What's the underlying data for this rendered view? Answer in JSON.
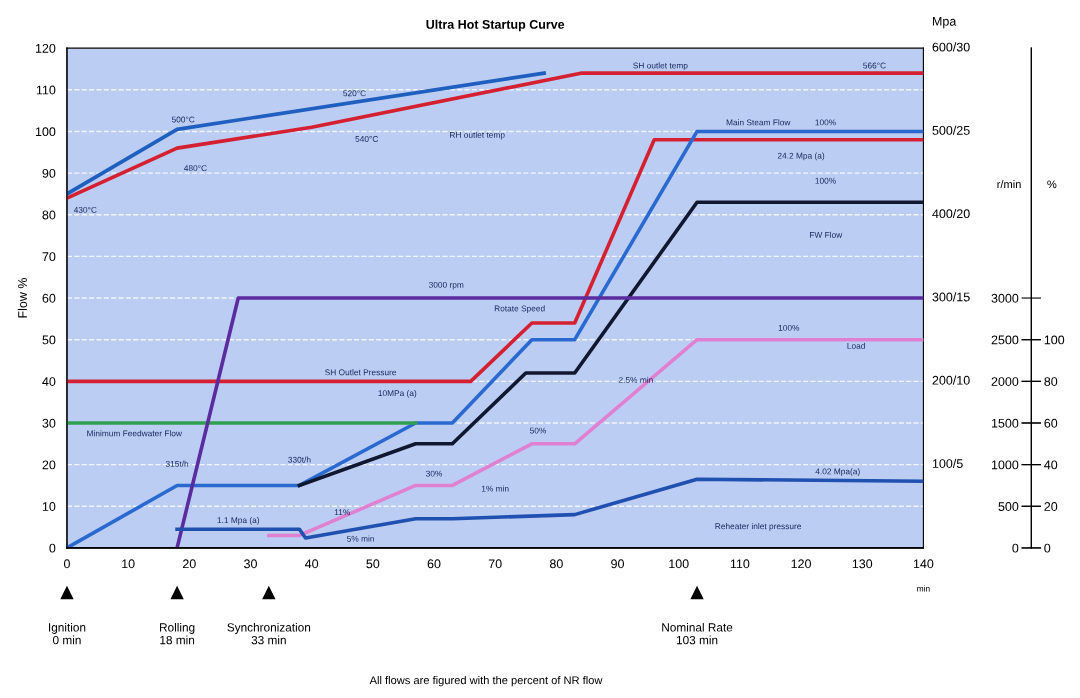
{
  "chart_data": {
    "type": "line",
    "title": "Ultra Hot Startup Curve",
    "xlabel": "min",
    "ylabel": "Flow %",
    "y2label": "%",
    "y3label": "r/min",
    "xlim": [
      0,
      140
    ],
    "xticks": [
      0,
      10,
      20,
      30,
      40,
      50,
      60,
      70,
      80,
      90,
      100,
      110,
      120,
      130,
      140
    ],
    "ylim": [
      0,
      120
    ],
    "yticks": [
      0,
      10,
      20,
      30,
      40,
      50,
      60,
      70,
      80,
      90,
      100,
      110,
      120
    ],
    "y2lim": [
      0,
      240
    ],
    "y2ticks": [
      0,
      20,
      40,
      60,
      80,
      100
    ],
    "y3lim": [
      0,
      6000
    ],
    "y3ticks": [
      0,
      500,
      1000,
      1500,
      2000,
      2500,
      3000
    ],
    "grid": "y",
    "line_style": "solid",
    "marker": "none",
    "series": [
      {
        "color": "#1f5fc0",
        "x": [
          0,
          18,
          78
        ],
        "values": [
          85,
          100.5,
          114
        ]
      },
      {
        "color": "#d42030",
        "x": [
          0,
          18,
          40,
          84,
          140
        ],
        "values": [
          84,
          96,
          101,
          114,
          114
        ]
      },
      {
        "color": "#d42030",
        "x": [
          0,
          66,
          76,
          83,
          96,
          140
        ],
        "values": [
          40,
          40,
          54,
          54,
          98,
          98
        ]
      },
      {
        "color": "#2a6ad0",
        "x": [
          0,
          18,
          38,
          57,
          63,
          76,
          83,
          103,
          140
        ],
        "values": [
          0,
          15,
          15,
          30,
          30,
          50,
          50,
          100,
          100
        ]
      },
      {
        "color": "#101830",
        "x": [
          38,
          57,
          63,
          75,
          83,
          103,
          140
        ],
        "values": [
          15,
          25,
          25,
          42,
          42,
          83,
          83
        ]
      },
      {
        "color": "#30a050",
        "x": [
          0,
          57
        ],
        "values": [
          30,
          30
        ]
      },
      {
        "color": "#5a2ca0",
        "x": [
          18,
          28,
          140
        ],
        "values": [
          0,
          60,
          60
        ]
      },
      {
        "color": "#e080d0",
        "x": [
          33,
          38,
          57,
          63,
          76,
          83,
          103,
          140
        ],
        "values": [
          3,
          3,
          15,
          15,
          25,
          25,
          50,
          50
        ]
      },
      {
        "color": "#2050b0",
        "x": [
          18,
          38,
          39,
          57,
          63,
          83,
          103,
          140
        ],
        "values": [
          4.5,
          4.5,
          2.4,
          7,
          7,
          8,
          16.5,
          16
        ]
      }
    ],
    "annotations": [
      {
        "text": "430°C",
        "x": 3,
        "y": 86
      },
      {
        "text": "500°C",
        "x": 19,
        "y": 100.7
      },
      {
        "text": "480°C",
        "x": 21,
        "y": 96.7
      },
      {
        "text": "520°C",
        "x": 47,
        "y": 107
      },
      {
        "text": "540°C",
        "x": 49,
        "y": 103.7
      },
      {
        "text": "SH outlet temp",
        "x": 97,
        "y": 114
      },
      {
        "text": "566°C",
        "x": 132,
        "y": 114
      },
      {
        "text": "Main Steam Flow",
        "x": 113,
        "y": 100
      },
      {
        "text": "100%",
        "x": 124,
        "y": 100
      },
      {
        "text": "24.2 Mpa (a)",
        "x": 120,
        "y": 98
      },
      {
        "text": "100%",
        "x": 124,
        "y": 83
      },
      {
        "text": "3000 rpm",
        "x": 62,
        "y": 60
      },
      {
        "text": "Rotate Speed",
        "x": 74,
        "y": 60
      },
      {
        "text": "SH Outlet Pressure",
        "x": 48,
        "y": 40
      },
      {
        "text": "10MPa (a)",
        "x": 54,
        "y": 40
      },
      {
        "text": "Minimum Feedwater Flow",
        "x": 11,
        "y": 30
      },
      {
        "text": "315t/h",
        "x": 18,
        "y": 15
      },
      {
        "text": "330t/h",
        "x": 38,
        "y": 15
      },
      {
        "text": "30%",
        "x": 60,
        "y": 15
      },
      {
        "text": "50%",
        "x": 77,
        "y": 25
      },
      {
        "text": "1% min",
        "x": 70,
        "y": 20.4
      },
      {
        "text": "2.5% min",
        "x": 93,
        "y": 37.5
      },
      {
        "text": "100%",
        "x": 118,
        "y": 50
      },
      {
        "text": "Load",
        "x": 129,
        "y": 50
      },
      {
        "text": "11%",
        "x": 45,
        "y": 7.4
      },
      {
        "text": "1.1 Mpa (a)",
        "x": 28,
        "y": 4.5
      },
      {
        "text": "5% min",
        "x": 48,
        "y": 4.7
      },
      {
        "text": "4.02 Mpa(a)",
        "x": 126,
        "y": 16.2
      },
      "RH outlet temp",
      "FW Flow",
      "Reheater inlet pressure",
      "Ignition\n0 min",
      "Rolling\n18 min",
      "Synchronization\n33 min",
      "Nominal Rate\n103 min",
      "Mpa",
      "600/30",
      "500/25",
      "400/20",
      "300/15",
      "200/10",
      "100/5",
      "All flows are figured with the percent of NR flow"
    ]
  }
}
